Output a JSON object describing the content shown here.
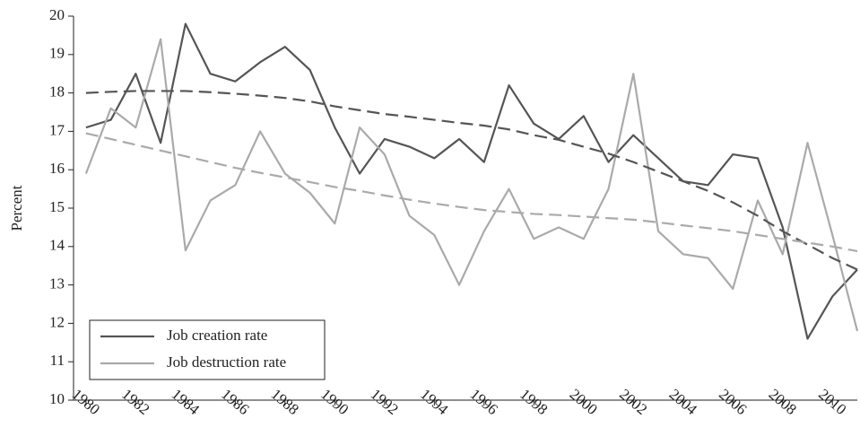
{
  "chart_data": {
    "type": "line",
    "y_label": "Percent",
    "x": [
      1980,
      1981,
      1982,
      1983,
      1984,
      1985,
      1986,
      1987,
      1988,
      1989,
      1990,
      1991,
      1992,
      1993,
      1994,
      1995,
      1996,
      1997,
      1998,
      1999,
      2000,
      2001,
      2002,
      2003,
      2004,
      2005,
      2006,
      2007,
      2008,
      2009,
      2010,
      2011
    ],
    "series": [
      {
        "name": "Job creation rate",
        "color": "#555555",
        "dash": false,
        "values": [
          17.1,
          17.3,
          18.5,
          16.7,
          19.8,
          18.5,
          18.3,
          18.8,
          19.2,
          18.6,
          17.1,
          15.9,
          16.8,
          16.6,
          16.3,
          16.8,
          16.2,
          18.2,
          17.2,
          16.8,
          17.4,
          16.2,
          16.9,
          16.3,
          15.7,
          15.6,
          16.4,
          16.3,
          14.5,
          11.6,
          12.7,
          13.4
        ]
      },
      {
        "name": "Job destruction rate",
        "color": "#aaaaaa",
        "dash": false,
        "values": [
          15.9,
          17.6,
          17.1,
          19.4,
          13.9,
          15.2,
          15.6,
          17.0,
          15.9,
          15.4,
          14.6,
          17.1,
          16.4,
          14.8,
          14.3,
          13.0,
          14.4,
          15.5,
          14.2,
          14.5,
          14.2,
          15.5,
          18.5,
          14.4,
          13.8,
          13.7,
          12.9,
          15.2,
          13.8,
          16.7,
          14.3,
          11.8
        ]
      },
      {
        "color": "#555555",
        "dash": true,
        "values": [
          18.0,
          18.03,
          18.05,
          18.05,
          18.05,
          18.02,
          17.98,
          17.93,
          17.87,
          17.78,
          17.65,
          17.55,
          17.45,
          17.38,
          17.3,
          17.22,
          17.15,
          17.05,
          16.9,
          16.78,
          16.6,
          16.42,
          16.2,
          15.95,
          15.7,
          15.45,
          15.15,
          14.8,
          14.4,
          14.05,
          13.7,
          13.4
        ]
      },
      {
        "color": "#aaaaaa",
        "dash": true,
        "values": [
          16.95,
          16.8,
          16.65,
          16.5,
          16.35,
          16.2,
          16.05,
          15.92,
          15.8,
          15.68,
          15.55,
          15.45,
          15.33,
          15.22,
          15.12,
          15.03,
          14.95,
          14.9,
          14.85,
          14.82,
          14.78,
          14.74,
          14.7,
          14.63,
          14.55,
          14.48,
          14.4,
          14.3,
          14.2,
          14.1,
          14.0,
          13.88
        ]
      }
    ],
    "xlim": [
      1979.5,
      2011
    ],
    "xticks": [
      1980,
      1982,
      1984,
      1986,
      1988,
      1990,
      1992,
      1994,
      1996,
      1998,
      2000,
      2002,
      2004,
      2006,
      2008,
      2010
    ],
    "ylim": [
      10,
      20
    ],
    "yticks": [
      10,
      11,
      12,
      13,
      14,
      15,
      16,
      17,
      18,
      19,
      20
    ],
    "grid": false,
    "legend": "lower-left"
  }
}
